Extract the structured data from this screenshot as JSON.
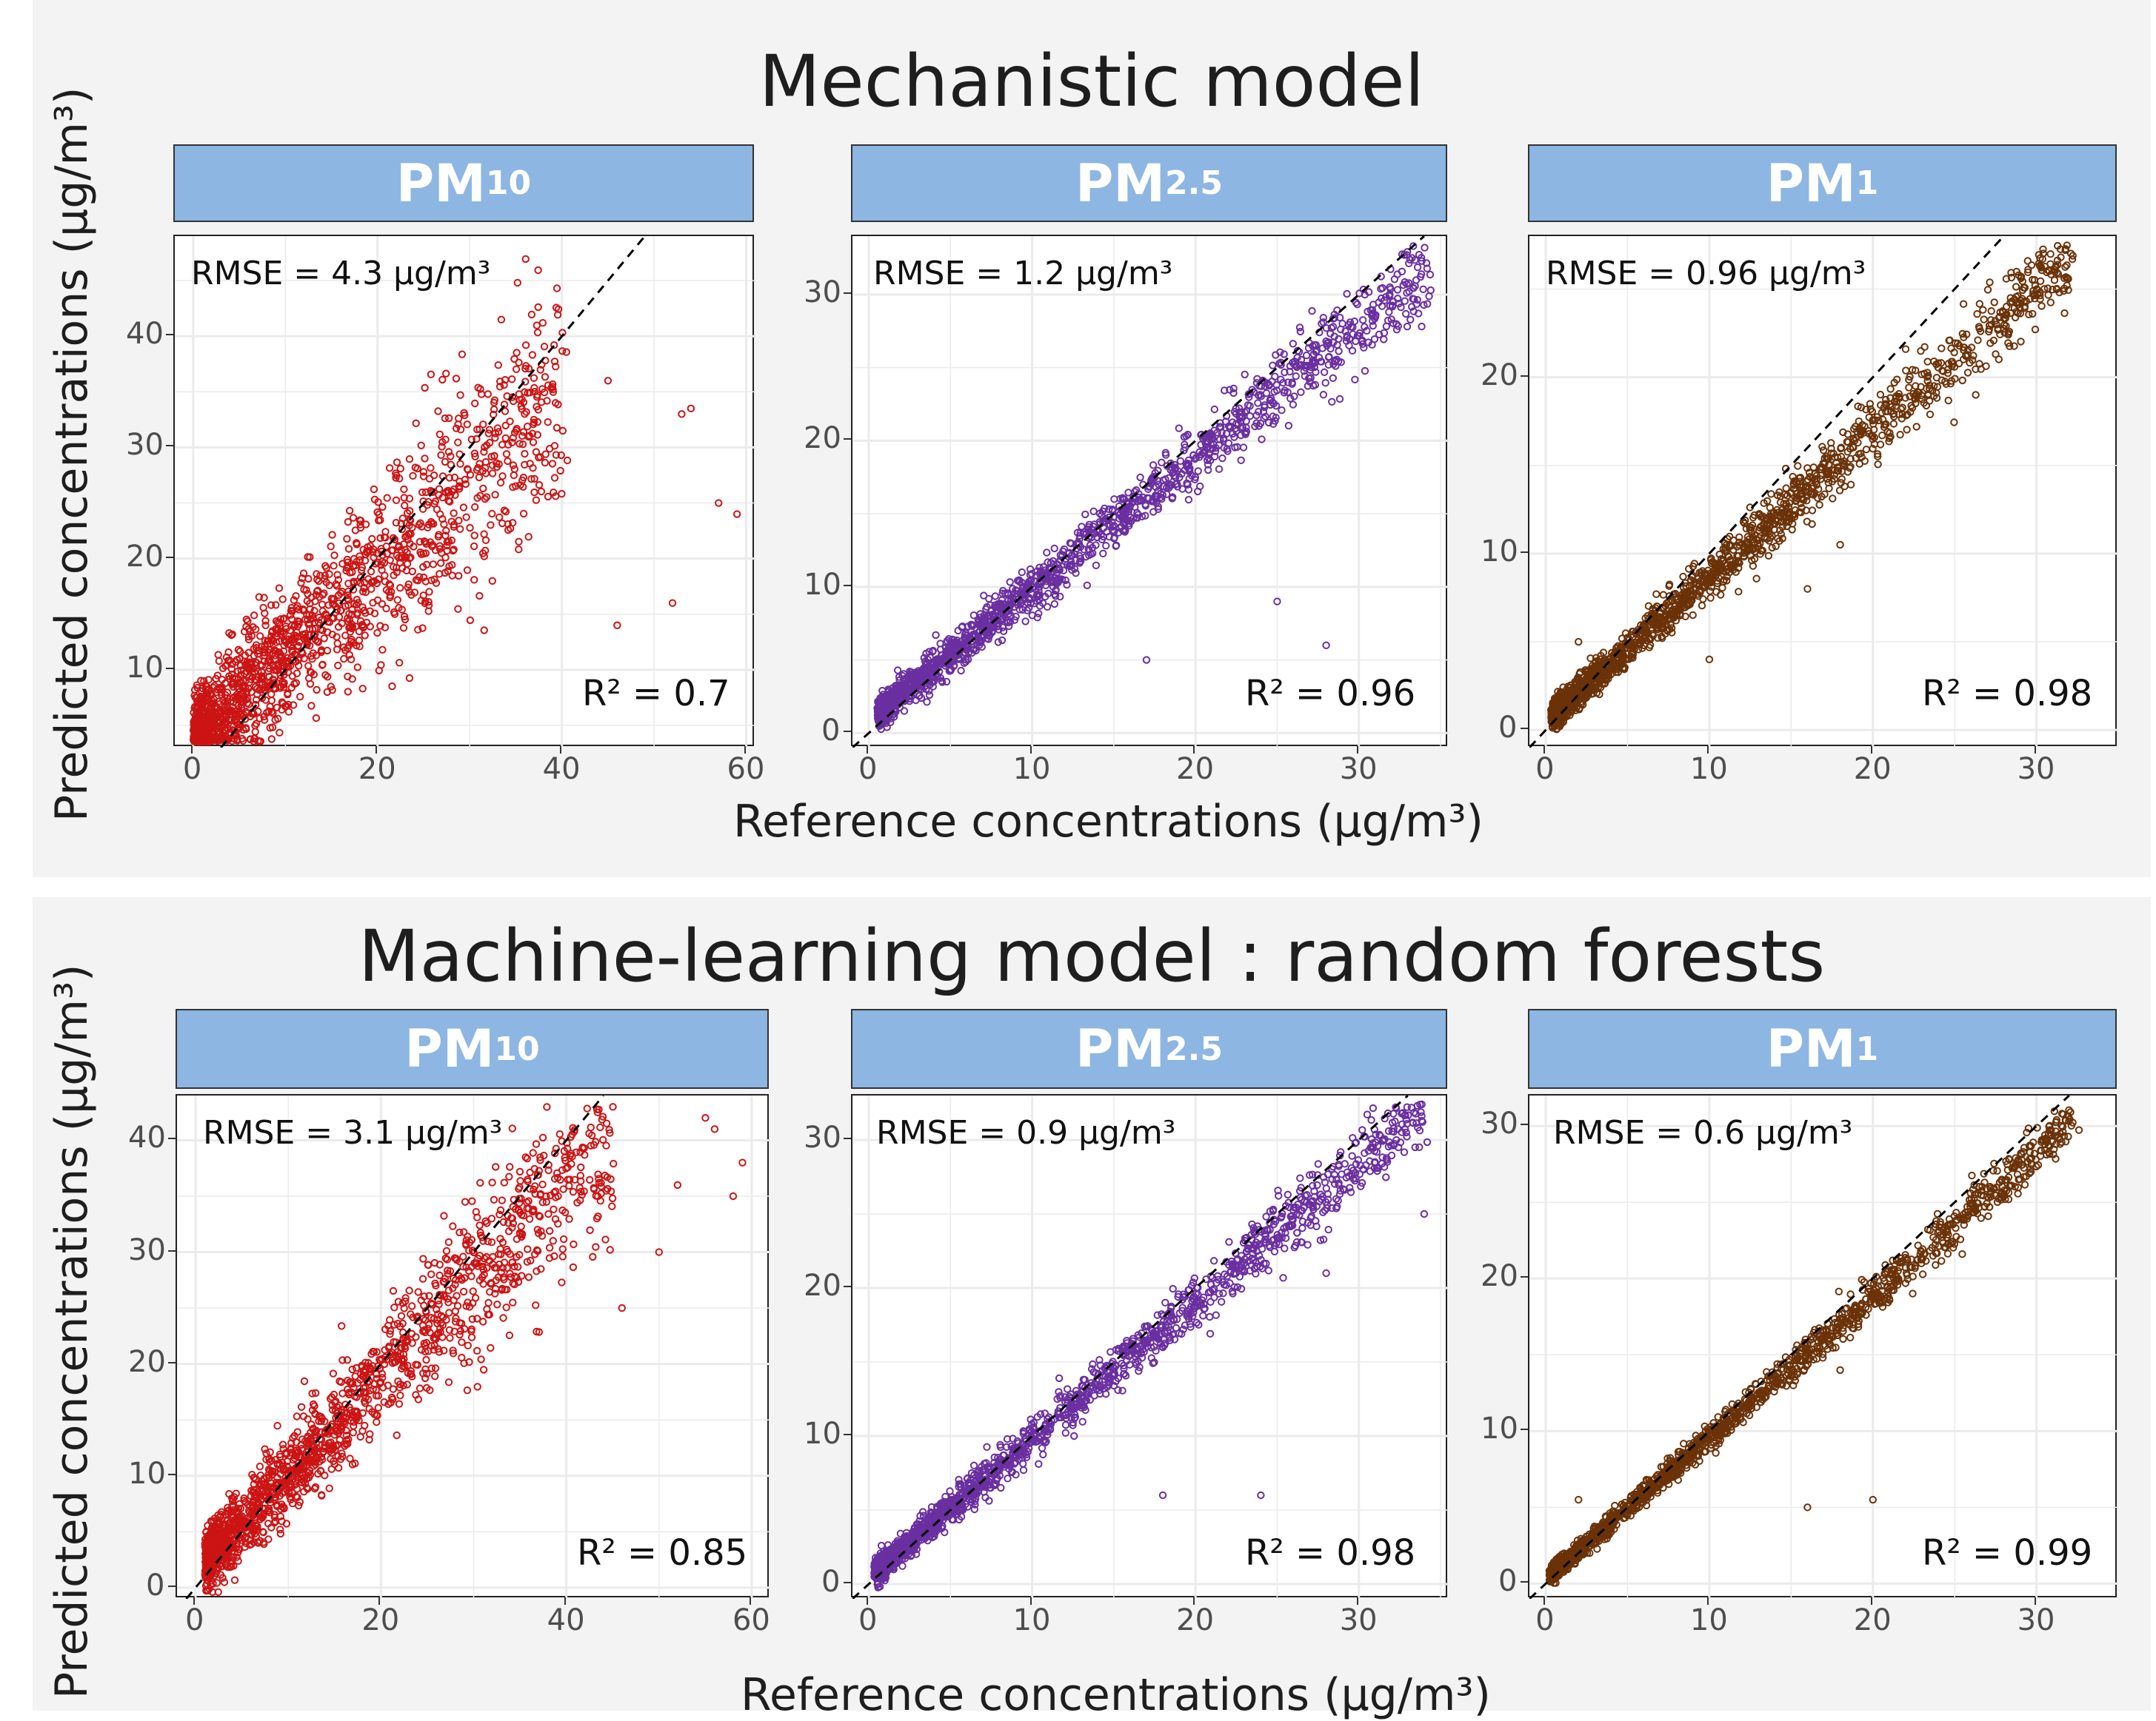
{
  "colors": {
    "pm10": "#cc1414",
    "pm25": "#6a2fa0",
    "pm1": "#6b3208",
    "strip": "#8db6e2"
  },
  "y_axis_label": "Predicted concentrations (µg/m³)",
  "x_axis_label": "Reference concentrations (µg/m³)",
  "sections": [
    {
      "title": "Mechanistic model"
    },
    {
      "title": "Machine-learning model : random forests"
    }
  ],
  "chart_data": [
    {
      "type": "scatter",
      "model": "Mechanistic model",
      "panel": "PM10",
      "strip_main": "PM",
      "strip_sub": "10",
      "rmse": "RMSE = 4.3 µg/m³",
      "r2": "R² = 0.7",
      "xlim": [
        -2,
        61
      ],
      "ylim": [
        3,
        49
      ],
      "x_ticks": [
        0,
        20,
        40,
        60
      ],
      "y_ticks": [
        10,
        20,
        30,
        40
      ],
      "reference_line": "y = x (dashed)",
      "color": "#cc1414",
      "trend_slope": 0.78,
      "trend_intercept": 3.5,
      "spread": 4.3,
      "x_range": [
        0,
        40
      ],
      "outliers": [
        [
          45,
          36
        ],
        [
          46,
          14
        ],
        [
          52,
          16
        ],
        [
          53,
          33
        ],
        [
          54,
          33.5
        ],
        [
          57,
          25
        ],
        [
          59,
          24
        ]
      ]
    },
    {
      "type": "scatter",
      "model": "Mechanistic model",
      "panel": "PM2.5",
      "strip_main": "PM",
      "strip_sub": "2.5",
      "rmse": "RMSE = 1.2 µg/m³",
      "r2": "R² = 0.96",
      "xlim": [
        -1,
        35.5
      ],
      "ylim": [
        -1,
        34
      ],
      "x_ticks": [
        0,
        10,
        20,
        30
      ],
      "y_ticks": [
        0,
        10,
        20,
        30
      ],
      "reference_line": "y = x (dashed)",
      "color": "#6a2fa0",
      "trend_slope": 0.9,
      "trend_intercept": 0.9,
      "spread": 1.1,
      "x_range": [
        0.5,
        34
      ],
      "outliers": [
        [
          17,
          5
        ],
        [
          25,
          9
        ],
        [
          28,
          6
        ]
      ]
    },
    {
      "type": "scatter",
      "model": "Mechanistic model",
      "panel": "PM1",
      "strip_main": "PM",
      "strip_sub": "1",
      "rmse": "RMSE = 0.96 µg/m³",
      "r2": "R² = 0.98",
      "xlim": [
        -1,
        35
      ],
      "ylim": [
        -1,
        28
      ],
      "x_ticks": [
        0,
        10,
        20,
        30
      ],
      "y_ticks": [
        0,
        10,
        20
      ],
      "reference_line": "y = x (dashed)",
      "color": "#6b3208",
      "trend_slope": 0.82,
      "trend_intercept": 0.5,
      "spread": 0.9,
      "x_range": [
        0.3,
        32
      ],
      "outliers": [
        [
          2,
          5
        ],
        [
          10,
          4
        ],
        [
          16,
          8
        ],
        [
          18,
          10.5
        ]
      ]
    },
    {
      "type": "scatter",
      "model": "Machine-learning model : random forests",
      "panel": "PM10",
      "strip_main": "PM",
      "strip_sub": "10",
      "rmse": "RMSE = 3.1 µg/m³",
      "r2": "R² = 0.85",
      "xlim": [
        -2,
        62
      ],
      "ylim": [
        -1,
        44
      ],
      "x_ticks": [
        0,
        20,
        40,
        60
      ],
      "y_ticks": [
        0,
        10,
        20,
        30,
        40
      ],
      "reference_line": "y = x (dashed)",
      "color": "#cc1414",
      "trend_slope": 0.86,
      "trend_intercept": 1.5,
      "spread": 3.1,
      "x_range": [
        1,
        45
      ],
      "outliers": [
        [
          46,
          25
        ],
        [
          55,
          42
        ],
        [
          56,
          41
        ],
        [
          58,
          35
        ],
        [
          59,
          38
        ],
        [
          50,
          30
        ],
        [
          52,
          36
        ]
      ]
    },
    {
      "type": "scatter",
      "model": "Machine-learning model : random forests",
      "panel": "PM2.5",
      "strip_main": "PM",
      "strip_sub": "2.5",
      "rmse": "RMSE = 0.9 µg/m³",
      "r2": "R² = 0.98",
      "xlim": [
        -1,
        35.5
      ],
      "ylim": [
        -1,
        33
      ],
      "x_ticks": [
        0,
        10,
        20,
        30
      ],
      "y_ticks": [
        0,
        10,
        20,
        30
      ],
      "reference_line": "y = x (dashed)",
      "color": "#6a2fa0",
      "trend_slope": 0.93,
      "trend_intercept": 0.5,
      "spread": 0.9,
      "x_range": [
        0.3,
        34
      ],
      "outliers": [
        [
          18,
          6
        ],
        [
          24,
          6
        ],
        [
          28,
          21
        ],
        [
          34,
          25
        ]
      ]
    },
    {
      "type": "scatter",
      "model": "Machine-learning model : random forests",
      "panel": "PM1",
      "strip_main": "PM",
      "strip_sub": "1",
      "rmse": "RMSE = 0.6 µg/m³",
      "r2": "R² = 0.99",
      "xlim": [
        -1,
        35
      ],
      "ylim": [
        -1,
        32
      ],
      "x_ticks": [
        0,
        10,
        20,
        30
      ],
      "y_ticks": [
        0,
        10,
        20,
        30
      ],
      "reference_line": "y = x (dashed)",
      "color": "#6b3208",
      "trend_slope": 0.93,
      "trend_intercept": 0.3,
      "spread": 0.6,
      "x_range": [
        0.2,
        32
      ],
      "outliers": [
        [
          2,
          5.5
        ],
        [
          16,
          5
        ],
        [
          20,
          5.5
        ],
        [
          18,
          14
        ]
      ]
    }
  ]
}
